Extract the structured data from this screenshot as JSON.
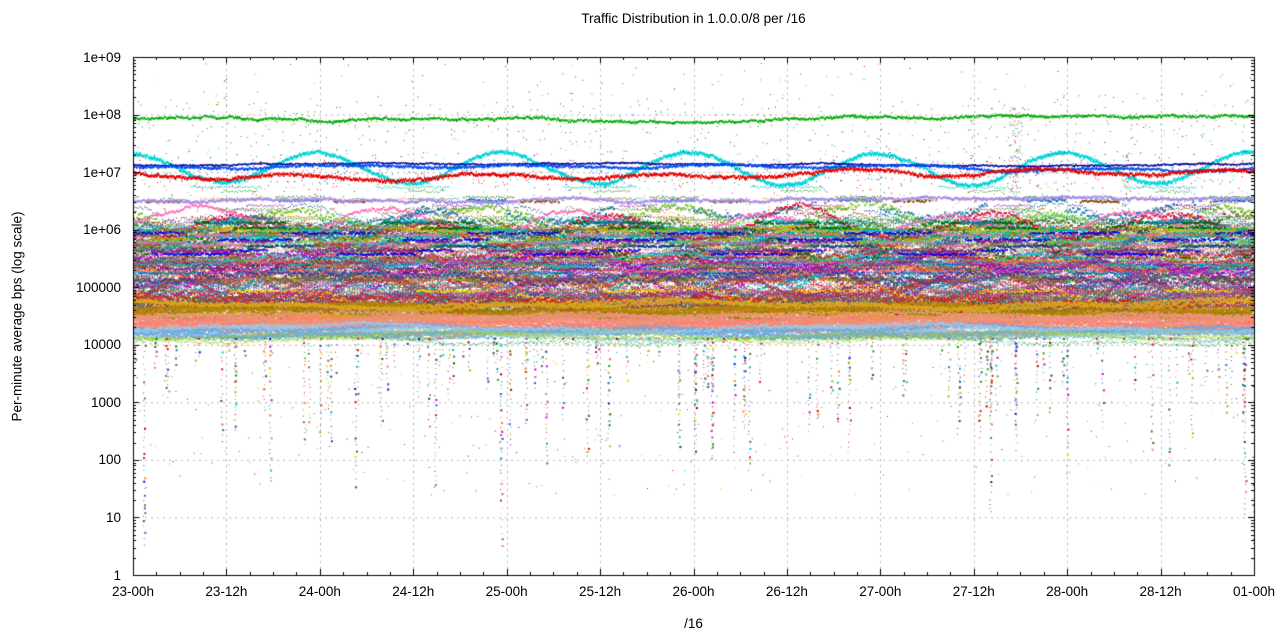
{
  "chart_data": {
    "type": "scatter",
    "title": "Traffic Distribution in 1.0.0.0/8 per /16",
    "xlabel": "/16",
    "ylabel": "Per-minute average bps (log scale)",
    "y_scale": "log",
    "ylim": [
      1,
      1000000000
    ],
    "y_ticks": [
      {
        "label": "1e+09",
        "log": 9
      },
      {
        "label": "1e+08",
        "log": 8
      },
      {
        "label": "1e+07",
        "log": 7
      },
      {
        "label": "1e+06",
        "log": 6
      },
      {
        "label": "100000",
        "log": 5
      },
      {
        "label": "10000",
        "log": 4
      },
      {
        "label": "1000",
        "log": 3
      },
      {
        "label": "100",
        "log": 2
      },
      {
        "label": "10",
        "log": 1
      },
      {
        "label": "1",
        "log": 0
      }
    ],
    "x_ticks": [
      "23-00h",
      "23-12h",
      "24-00h",
      "24-12h",
      "25-00h",
      "25-12h",
      "26-00h",
      "26-12h",
      "27-00h",
      "27-12h",
      "28-00h",
      "28-12h",
      "01-00h"
    ],
    "time_span_hours": 144,
    "x_minor_per_major": 4,
    "grid": {
      "color": "#b2b2b2",
      "dash": [
        2,
        4
      ]
    },
    "frame_color": "#000000",
    "major_series": [
      {
        "name": "steady-83Mbps-green",
        "color": "#00a800",
        "kind": "flat",
        "log_level": 7.92,
        "noise": 0.016,
        "walk": 0.022,
        "dot": 2,
        "outliers": {
          "n": 300,
          "spread": 0.5
        }
      },
      {
        "name": "diurnal-cyan",
        "color": "#00d4d8",
        "kind": "sine",
        "log_center": 7.06,
        "log_amp": 0.27,
        "period_h": 24,
        "peak_clock_h": 22.5,
        "noise": 0.02,
        "walk": 0.02,
        "dot": 3,
        "outliers": {
          "n": 170,
          "spread": 0.4
        }
      },
      {
        "name": "steady-navy",
        "color": "#000096",
        "kind": "flat",
        "log_level": 7.125,
        "noise": 0.01,
        "walk": 0.012,
        "dot": 1.6,
        "outliers": {
          "n": 70,
          "spread": 0.3
        }
      },
      {
        "name": "steady-blue",
        "color": "#0050f0",
        "kind": "sine",
        "log_center": 7.07,
        "log_amp": 0.03,
        "period_h": 24,
        "peak_clock_h": 3,
        "noise": 0.014,
        "walk": 0.015,
        "dot": 2.2,
        "outliers": {
          "n": 140,
          "spread": 0.35
        }
      },
      {
        "name": "diurnal-red-9Mbps",
        "color": "#e60000",
        "kind": "sine",
        "log_center": 6.95,
        "log_amp": 0.05,
        "period_h": 24,
        "peak_clock_h": 20,
        "noise": 0.02,
        "walk": 0.02,
        "dot": 2.6,
        "outliers": {
          "n": 260,
          "spread": 0.42
        }
      },
      {
        "name": "steady-lavender-3Mbps",
        "color": "#a78ae6",
        "kind": "flat",
        "log_level": 6.49,
        "noise": 0.016,
        "walk": 0.025,
        "dot": 2.2,
        "outliers": {
          "n": 150,
          "spread": 0.28
        }
      }
    ],
    "palette": [
      "#e60000",
      "#00a400",
      "#0000e6",
      "#c800c8",
      "#00b4b4",
      "#c8a000",
      "#804000",
      "#f08028",
      "#707070",
      "#e65c73",
      "#78c828",
      "#3264c8",
      "#8c1799",
      "#17becf",
      "#bcbd22",
      "#8c564b",
      "#e377c2",
      "#2ca02c",
      "#d62728",
      "#1f77b4",
      "#ff7f0e",
      "#9467bd",
      "#004080",
      "#990000",
      "#ffd700",
      "#006400",
      "#dc143c",
      "#00ced1",
      "#ff69b4",
      "#556b2f",
      "#483d8b",
      "#a0522d"
    ],
    "band": {
      "mid_series": 155,
      "mid_log_min": 4.55,
      "mid_log_span": 1.5,
      "pulse_series": 26,
      "pulse_log_base": [
        5.25,
        5.92
      ],
      "pulse_boost": [
        0.25,
        0.62
      ],
      "layers": [
        {
          "name": "olive-goldenrod",
          "colors": [
            "#b8860b",
            "#808000",
            "#daa520",
            "#9a7d0a"
          ],
          "log_lo": 4.46,
          "log_hi": 4.74,
          "series": 10,
          "dot": 2
        },
        {
          "name": "salmon",
          "colors": [
            "#fa8072",
            "#f4978e",
            "#e9967a",
            "#f4827a"
          ],
          "log_lo": 4.24,
          "log_hi": 4.52,
          "series": 14,
          "dot": 2
        },
        {
          "name": "sky-blue",
          "colors": [
            "#87ceeb",
            "#6fa8dc",
            "#9fc5e8"
          ],
          "log_lo": 4.16,
          "log_hi": 4.32,
          "series": 7,
          "dot": 2
        },
        {
          "name": "khaki-under",
          "colors": [
            "#f0e68c",
            "#bdb76b",
            "#9acd32",
            "#3cb371"
          ],
          "log_lo": 4.06,
          "log_hi": 4.2,
          "series": 5,
          "dot": 1
        }
      ]
    },
    "dropouts": {
      "streaks": 155,
      "log_top": 4.12,
      "depth_pow": 1.35,
      "depth_range": 2.25,
      "deep_rate": 0.08,
      "loose_dots": 320
    },
    "scatter_noise": {
      "n": 950,
      "log_base": 5.9,
      "log_span": 3.0,
      "pow": 2.4
    },
    "disturbances": [
      {
        "t_frac": 0.787,
        "n": 280,
        "log_min": 4.4,
        "log_max": 8.15,
        "x_sigma": 4
      },
      {
        "t_frac": 0.886,
        "n": 140,
        "log_min": 4.5,
        "log_max": 7.35,
        "x_sigma": 3
      }
    ]
  }
}
